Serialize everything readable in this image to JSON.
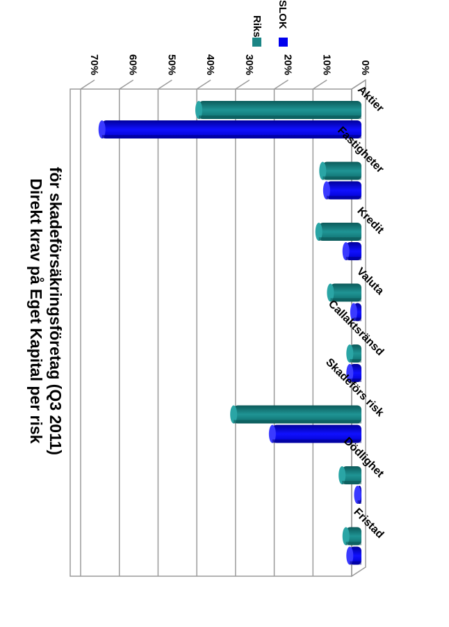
{
  "chart_data": {
    "type": "bar",
    "title_lines": [
      "Direkt krav på Eget Kapital per risk",
      "för skadeförsäkringsföretag (Q3 2011)"
    ],
    "categories": [
      "Aktier",
      "Fastigheter",
      "Kredit",
      "Valuta",
      "Callaktsränsd",
      "Skadeförs risk",
      "Dödlighet",
      "Fristad"
    ],
    "series": [
      {
        "name": "Riks",
        "color": "#1b8585",
        "values": [
          42,
          10,
          11,
          8,
          3,
          33,
          5,
          4
        ]
      },
      {
        "name": "SLOK",
        "color": "#0000ee",
        "values": [
          67,
          9,
          4,
          2,
          3,
          23,
          1,
          3
        ]
      }
    ],
    "value_axis": {
      "min": 0,
      "max": 70,
      "step": 10,
      "tick_labels": [
        "0%",
        "10%",
        "20%",
        "30%",
        "40%",
        "50%",
        "60%",
        "70%"
      ]
    },
    "grid": true,
    "orientation": "rotated-90-clockwise",
    "legend_position": "top-right"
  }
}
